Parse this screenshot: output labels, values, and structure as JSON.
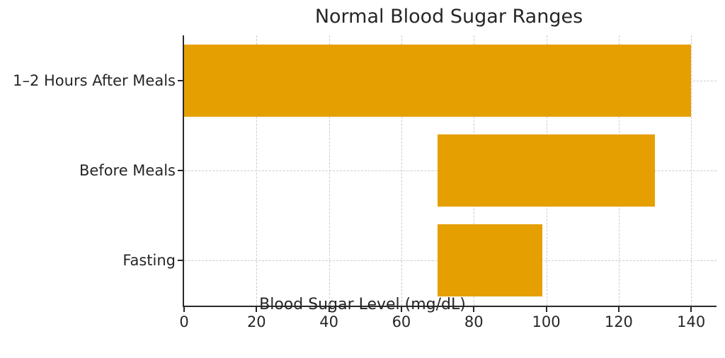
{
  "figure": {
    "title": "Normal Blood Sugar Ranges",
    "xlabel": "Blood Sugar Level (mg/dL)"
  },
  "chart_data": {
    "type": "bar",
    "orientation": "horizontal",
    "title": "Normal Blood Sugar Ranges",
    "xlabel": "Blood Sugar Level (mg/dL)",
    "ylabel": "",
    "categories": [
      "1–2 Hours After Meals",
      "Before Meals",
      "Fasting"
    ],
    "bars": [
      {
        "category": "1–2 Hours After Meals",
        "start": 0,
        "end": 140
      },
      {
        "category": "Before Meals",
        "start": 70,
        "end": 130
      },
      {
        "category": "Fasting",
        "start": 70,
        "end": 99
      }
    ],
    "xticks": [
      0,
      20,
      40,
      60,
      80,
      100,
      120,
      140
    ],
    "xlim": [
      0,
      147
    ],
    "bar_color": "#E69F00",
    "grid": {
      "style": "dashed",
      "color": "#cccccc",
      "axes": "both"
    },
    "spine_color": "#2a2a2a",
    "text_color": "#262626",
    "background": "#ffffff",
    "legend": null,
    "bar_height_fraction": 0.8
  }
}
